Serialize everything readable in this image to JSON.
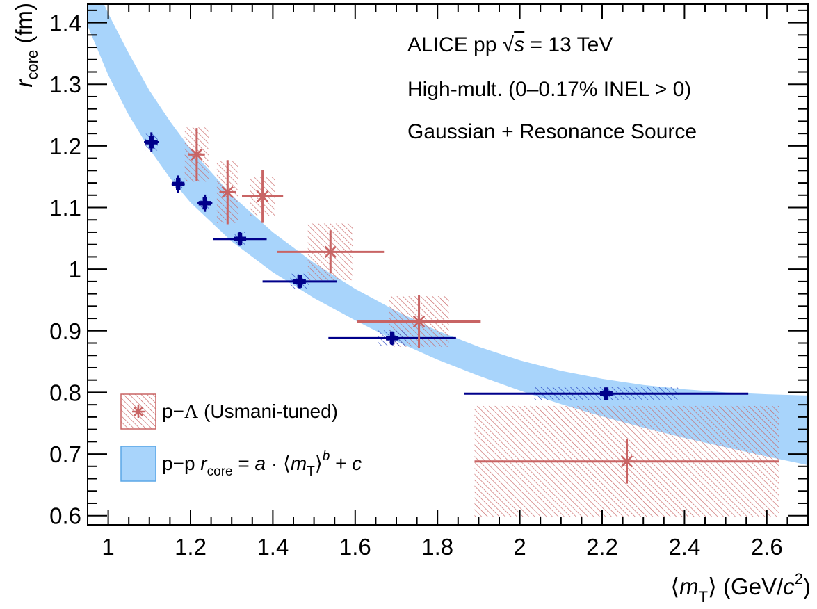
{
  "chart_data": {
    "type": "scatter",
    "annotations": [
      {
        "id": "experiment",
        "parts": [
          "ALICE pp ",
          "√",
          "s",
          " = 13 TeV"
        ]
      },
      {
        "id": "multiplicity",
        "text": "High-mult. (0–0.17% INEL > 0)"
      },
      {
        "id": "source",
        "text": "Gaussian + Resonance Source"
      }
    ],
    "xlabel": {
      "open": "⟨",
      "m": "m",
      "sub": "T",
      "close": "⟩",
      "units": " (GeV/",
      "c": "c",
      "sup": "2",
      "end": ")"
    },
    "ylabel": {
      "r": "r",
      "sub": "core",
      "units": " (fm)"
    },
    "xlim": [
      0.95,
      2.7
    ],
    "ylim": [
      0.585,
      1.43
    ],
    "xticks": [
      1,
      1.2,
      1.4,
      1.6,
      1.8,
      2,
      2.2,
      2.4,
      2.6
    ],
    "xtick_labels": [
      "1",
      "1.2",
      "1.4",
      "1.6",
      "1.8",
      "2",
      "2.2",
      "2.4",
      "2.6"
    ],
    "yticks": [
      0.6,
      0.7,
      0.8,
      0.9,
      1.0,
      1.1,
      1.2,
      1.3,
      1.4
    ],
    "ytick_labels": [
      "0.6",
      "0.7",
      "0.8",
      "0.9",
      "1",
      "1.1",
      "1.2",
      "1.3",
      "1.4"
    ],
    "legend": {
      "position": "bottom-left",
      "entries": [
        {
          "series": "pL",
          "parts": [
            "p",
            "−",
            "Λ",
            " (Usmani-tuned)"
          ]
        },
        {
          "series": "band",
          "parts": [
            "p",
            "−",
            "p  ",
            "r",
            "core",
            " = ",
            "a",
            " · ⟨",
            "m",
            "T",
            "⟩",
            "b",
            " + ",
            "c"
          ]
        }
      ]
    },
    "series": [
      {
        "id": "band",
        "kind": "band",
        "color": "#a8d4fb",
        "x": [
          0.95,
          1.0,
          1.05,
          1.1,
          1.15,
          1.2,
          1.3,
          1.4,
          1.5,
          1.6,
          1.7,
          1.8,
          1.9,
          2.0,
          2.1,
          2.2,
          2.3,
          2.4,
          2.5,
          2.6,
          2.7
        ],
        "lower": [
          1.395,
          1.315,
          1.25,
          1.195,
          1.148,
          1.108,
          1.045,
          0.995,
          0.953,
          0.917,
          0.883,
          0.853,
          0.827,
          0.803,
          0.781,
          0.761,
          0.743,
          0.726,
          0.711,
          0.696,
          0.682
        ],
        "upper": [
          1.49,
          1.415,
          1.35,
          1.29,
          1.24,
          1.195,
          1.12,
          1.06,
          1.01,
          0.968,
          0.932,
          0.9,
          0.874,
          0.852,
          0.835,
          0.822,
          0.812,
          0.805,
          0.8,
          0.797,
          0.795
        ]
      },
      {
        "id": "pp",
        "kind": "points",
        "color": "#00008b",
        "syst_color": "#1f3fbf",
        "marker": "cross",
        "points": [
          {
            "x": 1.105,
            "y": 1.206,
            "xerr": [
              0.018,
              0.018
            ],
            "yerr": [
              0.016,
              0.016
            ],
            "syst": [
              0.03,
              0.027
            ]
          },
          {
            "x": 1.17,
            "y": 1.138,
            "xerr": [
              0.016,
              0.016
            ],
            "yerr": [
              0.014,
              0.014
            ],
            "syst": [
              0.02,
              0.017
            ]
          },
          {
            "x": 1.235,
            "y": 1.107,
            "xerr": [
              0.018,
              0.018
            ],
            "yerr": [
              0.014,
              0.014
            ],
            "syst": [
              0.022,
              0.019
            ]
          },
          {
            "x": 1.32,
            "y": 1.049,
            "xerr": [
              0.065,
              0.065
            ],
            "yerr": [
              0.011,
              0.011
            ],
            "syst": [
              0.025,
              0.022
            ]
          },
          {
            "x": 1.465,
            "y": 0.98,
            "xerr": [
              0.09,
              0.09
            ],
            "yerr": [
              0.011,
              0.011
            ],
            "syst": [
              0.045,
              0.025
            ]
          },
          {
            "x": 1.69,
            "y": 0.888,
            "xerr": [
              0.155,
              0.155
            ],
            "yerr": [
              0.011,
              0.011
            ],
            "syst": [
              0.07,
              0.025
            ]
          },
          {
            "x": 2.21,
            "y": 0.798,
            "xerr": [
              0.345,
              0.345
            ],
            "yerr": [
              0.01,
              0.01
            ],
            "syst": [
              0.35,
              0.022
            ]
          }
        ]
      },
      {
        "id": "pL",
        "kind": "points",
        "color": "#c86464",
        "marker": "star",
        "points": [
          {
            "x": 1.215,
            "y": 1.186,
            "xerr": [
              0.02,
              0.02
            ],
            "yerr": [
              0.043,
              0.043
            ],
            "syst": [
              0.058,
              0.088
            ]
          },
          {
            "x": 1.29,
            "y": 1.125,
            "xerr": [
              0.02,
              0.02
            ],
            "yerr": [
              0.052,
              0.052
            ],
            "syst": [
              0.052,
              0.1
            ]
          },
          {
            "x": 1.375,
            "y": 1.118,
            "xerr": [
              0.05,
              0.05
            ],
            "yerr": [
              0.043,
              0.043
            ],
            "syst": [
              0.06,
              0.062
            ]
          },
          {
            "x": 1.54,
            "y": 1.028,
            "xerr": [
              0.13,
              0.13
            ],
            "yerr": [
              0.035,
              0.035
            ],
            "syst": [
              0.11,
              0.092
            ]
          },
          {
            "x": 1.755,
            "y": 0.915,
            "xerr": [
              0.15,
              0.15
            ],
            "yerr": [
              0.043,
              0.043
            ],
            "syst": [
              0.145,
              0.082
            ]
          },
          {
            "x": 2.26,
            "y": 0.688,
            "xerr": [
              0.37,
              0.37
            ],
            "yerr": [
              0.036,
              0.036
            ],
            "syst": [
              0.74,
              0.18
            ]
          }
        ]
      }
    ]
  }
}
